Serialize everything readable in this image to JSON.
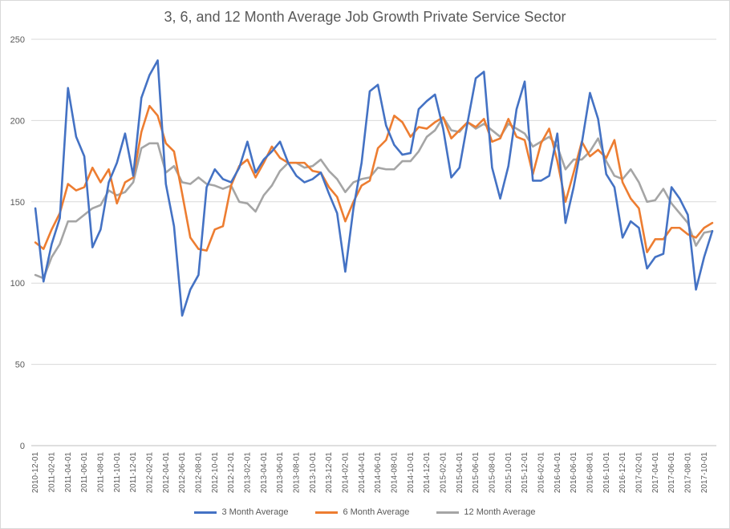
{
  "chart_data": {
    "type": "line",
    "title": "3, 6, and 12 Month Average Job Growth Private Service Sector",
    "ylim": [
      0,
      250
    ],
    "yticks": [
      0,
      50,
      100,
      150,
      200,
      250
    ],
    "grid": "horizontal",
    "legend_position": "bottom",
    "x_start": "2010-12-01",
    "xtick_labels": [
      "2010-12-01",
      "2011-02-01",
      "2011-04-01",
      "2011-06-01",
      "2011-08-01",
      "2011-10-01",
      "2011-12-01",
      "2012-02-01",
      "2012-04-01",
      "2012-06-01",
      "2012-08-01",
      "2012-10-01",
      "2012-12-01",
      "2013-02-01",
      "2013-04-01",
      "2013-06-01",
      "2013-08-01",
      "2013-10-01",
      "2013-12-01",
      "2014-02-01",
      "2014-04-01",
      "2014-06-01",
      "2014-08-01",
      "2014-10-01",
      "2014-12-01",
      "2015-02-01",
      "2015-04-01",
      "2015-06-01",
      "2015-08-01",
      "2015-10-01",
      "2015-12-01",
      "2016-02-01",
      "2016-04-01",
      "2016-06-01",
      "2016-08-01",
      "2016-10-01",
      "2016-12-01",
      "2017-02-01",
      "2017-04-01",
      "2017-06-01",
      "2017-08-01",
      "2017-10-01"
    ],
    "series": [
      {
        "name": "3 Month Average",
        "color": "#4472C4",
        "values": [
          146,
          101,
          124,
          140,
          220,
          190,
          178,
          122,
          133,
          162,
          174,
          192,
          166,
          214,
          228,
          237,
          161,
          135,
          80,
          96,
          105,
          159,
          170,
          164,
          162,
          171,
          187,
          168,
          176,
          181,
          187,
          174,
          166,
          162,
          164,
          168,
          155,
          143,
          107,
          146,
          174,
          218,
          222,
          197,
          185,
          179,
          180,
          207,
          212,
          216,
          195,
          165,
          171,
          199,
          226,
          230,
          171,
          152,
          172,
          207,
          224,
          163,
          163,
          166,
          192,
          137,
          159,
          186,
          217,
          201,
          167,
          159,
          128,
          138,
          134,
          109,
          116,
          118,
          159,
          152,
          142,
          96,
          116,
          132
        ]
      },
      {
        "name": "6 Month Average",
        "color": "#ED7D31",
        "values": [
          125,
          121,
          133,
          143,
          161,
          157,
          159,
          171,
          162,
          170,
          149,
          162,
          165,
          193,
          209,
          203,
          186,
          181,
          155,
          128,
          121,
          120,
          133,
          135,
          160,
          172,
          176,
          165,
          174,
          184,
          177,
          174,
          174,
          174,
          169,
          168,
          159,
          153,
          138,
          150,
          160,
          163,
          183,
          188,
          203,
          199,
          190,
          196,
          195,
          199,
          202,
          189,
          194,
          199,
          196,
          201,
          187,
          189,
          201,
          190,
          188,
          167,
          186,
          195,
          175,
          150,
          168,
          187,
          178,
          182,
          177,
          188,
          162,
          152,
          146,
          119,
          127,
          127,
          134,
          134,
          130,
          128,
          134,
          137
        ]
      },
      {
        "name": "12 Month Average",
        "color": "#A5A5A5",
        "values": [
          105,
          103,
          116,
          124,
          138,
          138,
          142,
          146,
          148,
          157,
          154,
          156,
          162,
          183,
          186,
          186,
          168,
          172,
          162,
          161,
          165,
          161,
          160,
          158,
          160,
          150,
          149,
          144,
          154,
          160,
          169,
          174,
          174,
          171,
          172,
          176,
          169,
          164,
          156,
          162,
          164,
          165,
          171,
          170,
          170,
          175,
          175,
          181,
          190,
          194,
          202,
          194,
          193,
          199,
          195,
          198,
          194,
          190,
          198,
          195,
          192,
          184,
          187,
          190,
          184,
          170,
          176,
          176,
          181,
          189,
          175,
          166,
          164,
          170,
          162,
          150,
          151,
          158,
          149,
          143,
          137,
          123,
          131,
          132
        ]
      }
    ]
  }
}
